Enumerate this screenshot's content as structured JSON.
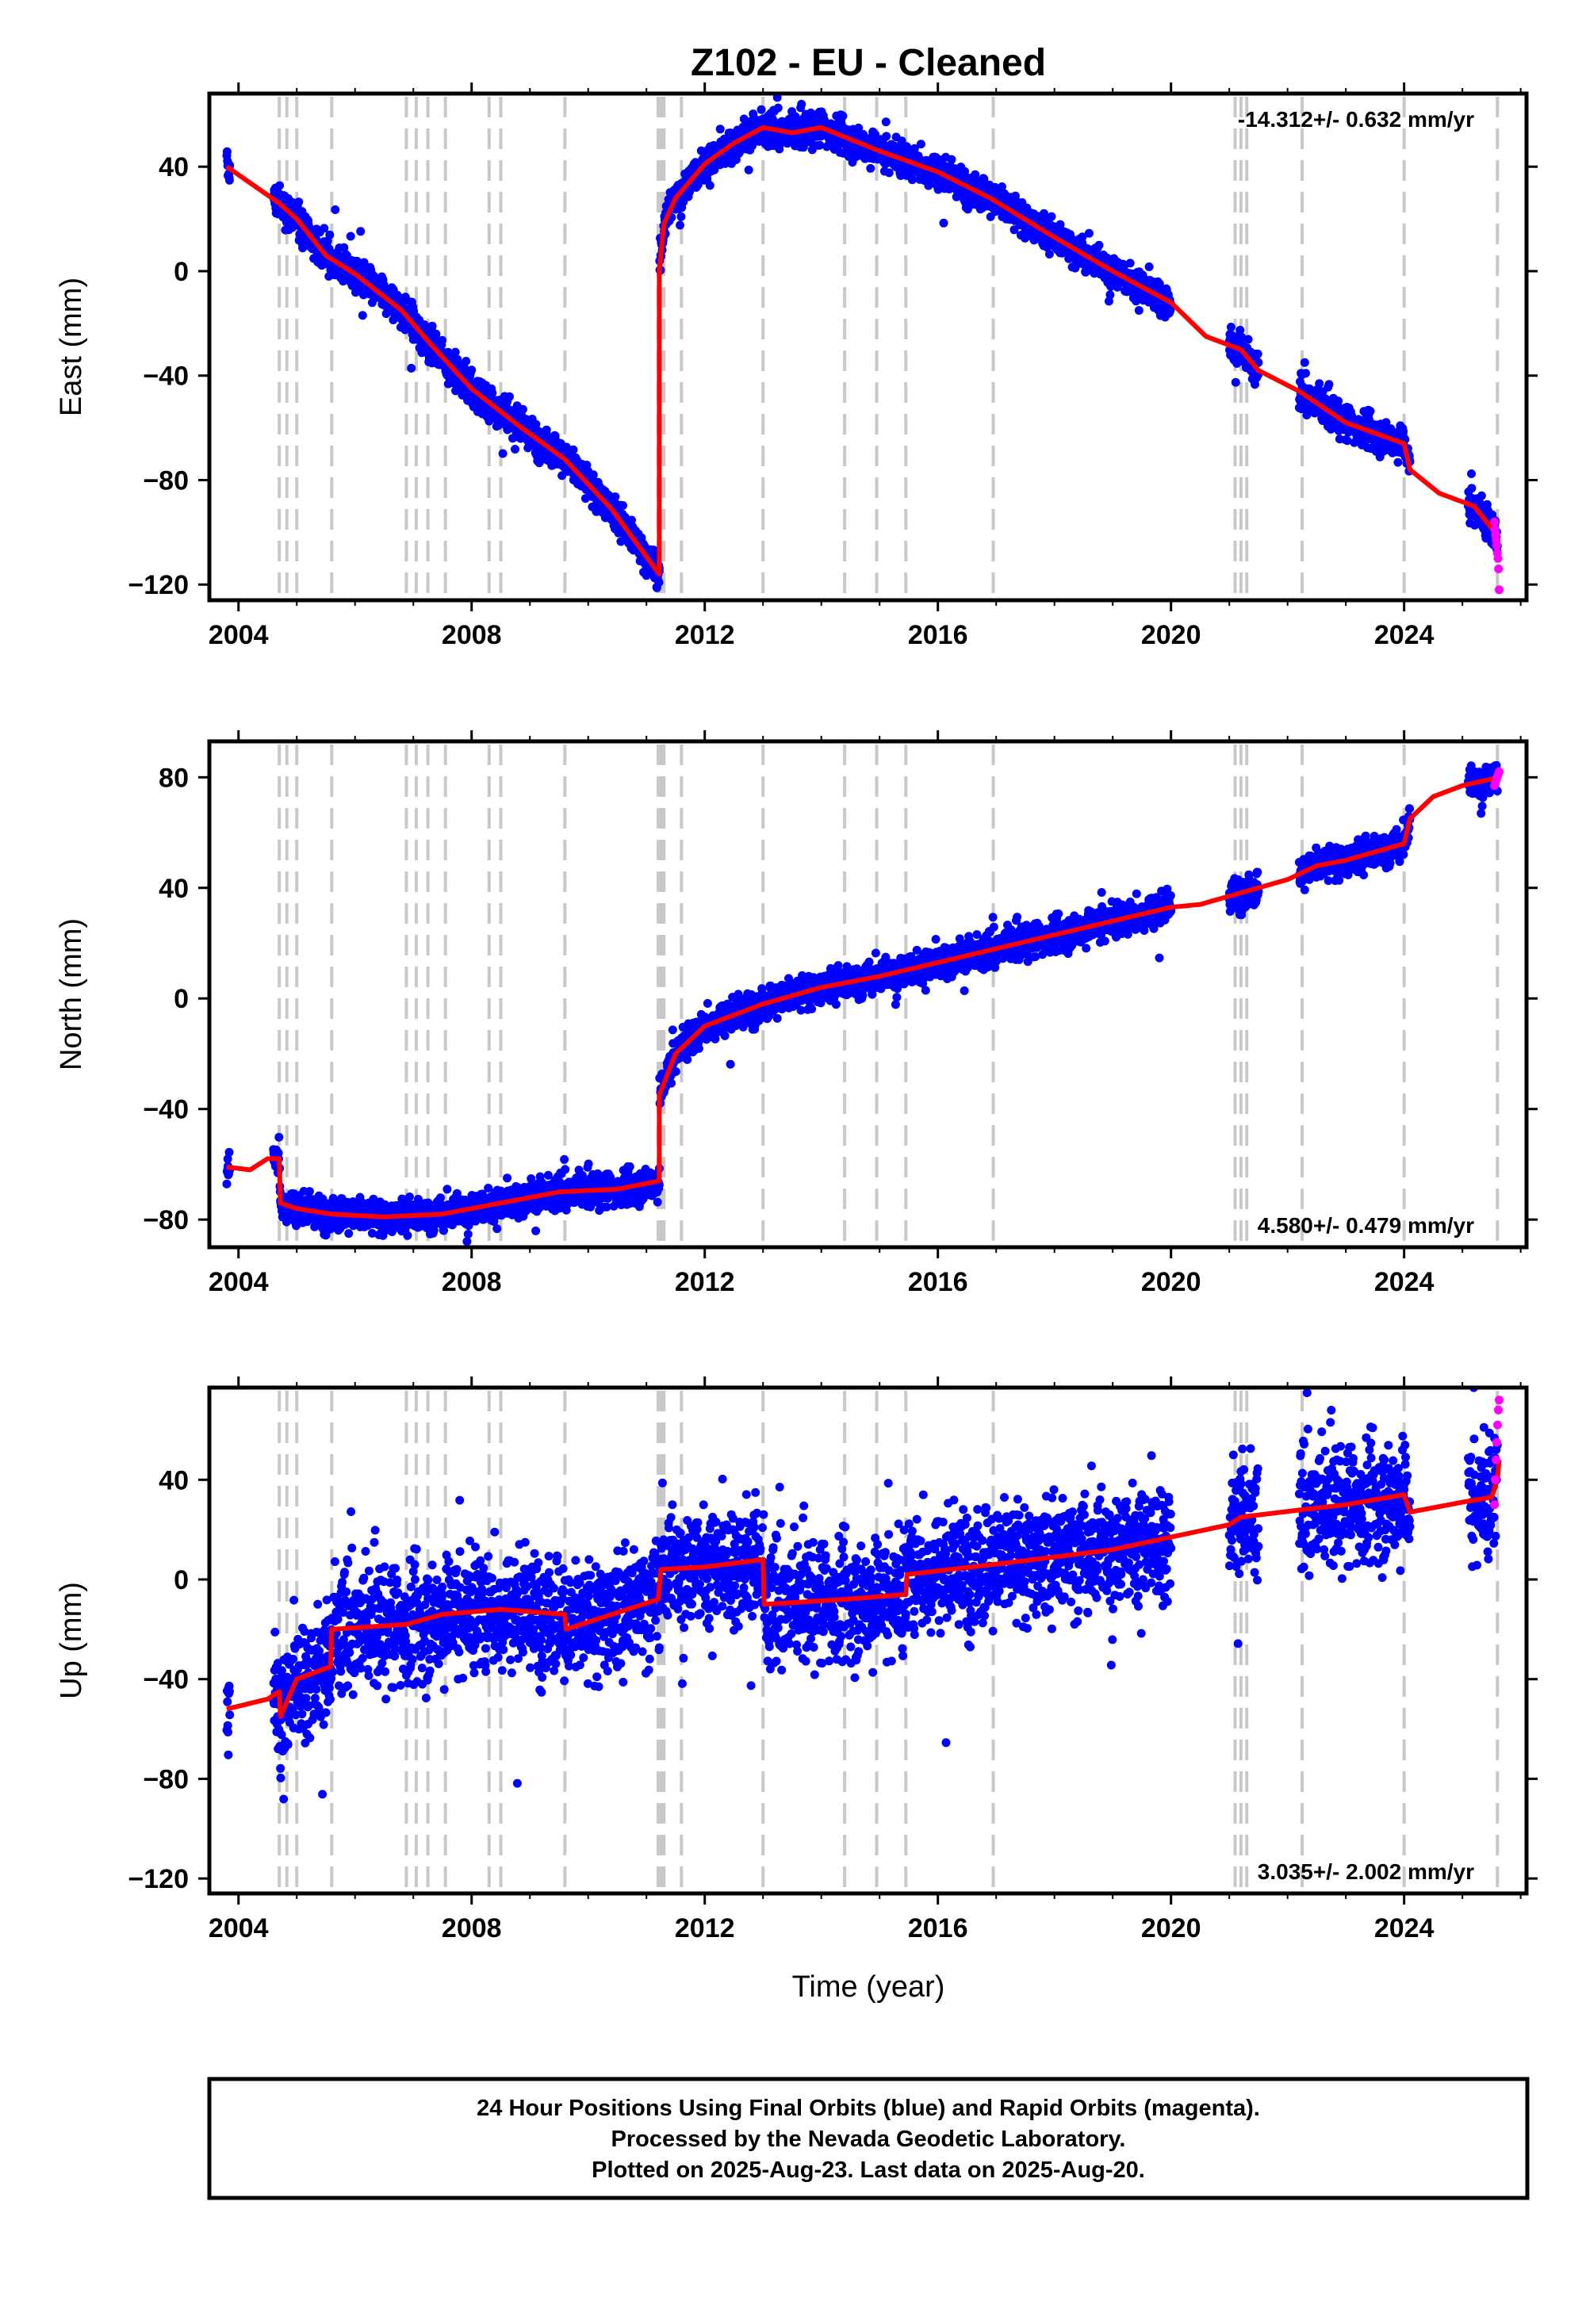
{
  "title": "Z102  - EU - Cleaned",
  "xlabel": "Time (year)",
  "footer": {
    "line1": "24 Hour Positions Using Final Orbits (blue) and Rapid Orbits (magenta).",
    "line2": "Processed by the Nevada Geodetic Laboratory.",
    "line3": "Plotted on 2025-Aug-23. Last data on 2025-Aug-20."
  },
  "colors": {
    "final": "#0000ff",
    "rapid": "#ff00ff",
    "model": "#ff0000",
    "events": "#c8c8c8"
  },
  "chart_data": [
    {
      "type": "scatter",
      "component": "East",
      "ylabel": "East (mm)",
      "rate": "-14.312+/- 0.632 mm/yr",
      "xlim": [
        2003.5,
        2026.1
      ],
      "ylim": [
        -126,
        68
      ],
      "xticks": [
        2004,
        2008,
        2012,
        2016,
        2020,
        2024
      ],
      "yticks": [
        40,
        0,
        -40,
        -80,
        -120
      ],
      "model": {
        "x": [
          2003.8,
          2004.7,
          2005.0,
          2005.5,
          2006.0,
          2006.8,
          2007.3,
          2008.0,
          2008.8,
          2009.6,
          2010.4,
          2011.22,
          2011.22,
          2011.3,
          2011.5,
          2012.0,
          2012.5,
          2013.0,
          2013.5,
          2014.0,
          2015.0,
          2016.0,
          2016.9,
          2018.0,
          2019.0,
          2020.0,
          2020.6,
          2021.2,
          2021.5,
          2022.2,
          2023.0,
          2024.0,
          2024.1,
          2024.6,
          2025.2,
          2025.63
        ],
        "y": [
          40,
          26,
          20,
          6,
          -1,
          -15,
          -28,
          -45,
          -59,
          -72,
          -91,
          -116,
          0,
          18,
          28,
          41,
          49,
          55,
          53,
          55,
          46,
          38,
          28,
          13,
          0,
          -12,
          -25,
          -30,
          -38,
          -46,
          -58,
          -66,
          -76,
          -85,
          -90,
          -102
        ]
      },
      "final_series": {
        "segments": [
          [
            2003.8,
            2003.85
          ],
          [
            2004.6,
            2011.22
          ],
          [
            2011.22,
            2020.0
          ],
          [
            2021.0,
            2021.5
          ],
          [
            2022.2,
            2024.1
          ],
          [
            2025.1,
            2025.6
          ]
        ],
        "noise_mm": 3.2
      },
      "rapid_series": {
        "x_range": [
          2025.55,
          2025.63
        ],
        "y": [
          -96,
          -99,
          -101,
          -103,
          -105,
          -108,
          -110,
          -114,
          -122
        ]
      },
      "events": [
        2004.7,
        2004.83,
        2005.0,
        2005.6,
        2006.88,
        2007.05,
        2007.25,
        2007.55,
        2008.3,
        2008.5,
        2009.6,
        2011.2,
        2011.25,
        2011.3,
        2011.6,
        2013.0,
        2014.4,
        2014.95,
        2015.45,
        2016.95,
        2021.1,
        2021.2,
        2021.3,
        2022.25,
        2024.0,
        2025.6
      ]
    },
    {
      "type": "scatter",
      "component": "North",
      "ylabel": "North (mm)",
      "rate": "4.580+/- 0.479 mm/yr",
      "xlim": [
        2003.5,
        2026.1
      ],
      "ylim": [
        -90,
        93
      ],
      "xticks": [
        2004,
        2008,
        2012,
        2016,
        2020,
        2024
      ],
      "yticks": [
        80,
        40,
        0,
        -40,
        -80
      ],
      "model": {
        "x": [
          2003.8,
          2004.2,
          2004.5,
          2004.7,
          2004.72,
          2005.0,
          2005.6,
          2006.5,
          2007.5,
          2008.5,
          2009.5,
          2010.5,
          2011.22,
          2011.22,
          2011.5,
          2012.0,
          2013.0,
          2014.0,
          2015.0,
          2016.0,
          2017.0,
          2018.0,
          2019.0,
          2020.0,
          2020.5,
          2021.0,
          2021.5,
          2022.0,
          2022.5,
          2023.0,
          2024.0,
          2024.1,
          2024.5,
          2025.0,
          2025.63
        ],
        "y": [
          -61,
          -62,
          -58,
          -58,
          -74,
          -76,
          -78,
          -79,
          -78,
          -74,
          -70,
          -69,
          -66,
          -35,
          -20,
          -10,
          -2,
          4,
          8,
          13,
          18,
          23,
          28,
          33,
          34,
          37,
          40,
          43,
          48,
          50,
          56,
          65,
          73,
          77,
          80
        ]
      },
      "final_series": {
        "segments": [
          [
            2003.8,
            2003.85
          ],
          [
            2004.6,
            2011.22
          ],
          [
            2011.22,
            2020.0
          ],
          [
            2021.0,
            2021.5
          ],
          [
            2022.2,
            2024.1
          ],
          [
            2025.1,
            2025.6
          ]
        ],
        "noise_mm": 3.0
      },
      "rapid_series": {
        "x_range": [
          2025.55,
          2025.63
        ],
        "y": [
          77,
          78,
          79,
          80,
          81,
          82
        ]
      },
      "events": [
        2004.7,
        2004.83,
        2005.0,
        2005.6,
        2006.88,
        2007.05,
        2007.25,
        2007.55,
        2008.3,
        2008.5,
        2009.6,
        2011.2,
        2011.25,
        2011.3,
        2011.6,
        2013.0,
        2014.4,
        2014.95,
        2015.45,
        2016.95,
        2021.1,
        2021.2,
        2021.3,
        2022.25,
        2024.0,
        2025.6
      ]
    },
    {
      "type": "scatter",
      "component": "Up",
      "ylabel": "Up (mm)",
      "rate": "3.035+/- 2.002 mm/yr",
      "xlim": [
        2003.5,
        2026.1
      ],
      "ylim": [
        -126,
        77
      ],
      "xticks": [
        2004,
        2008,
        2012,
        2016,
        2020,
        2024
      ],
      "yticks": [
        40,
        0,
        -40,
        -80,
        -120
      ],
      "model": {
        "x": [
          2003.8,
          2004.5,
          2004.7,
          2004.72,
          2005.0,
          2005.58,
          2005.6,
          2006.88,
          2007.5,
          2008.5,
          2009.6,
          2009.62,
          2011.2,
          2011.25,
          2012.0,
          2013.0,
          2013.02,
          2014.4,
          2015.45,
          2015.47,
          2016.95,
          2018.0,
          2019.0,
          2020.0,
          2021.0,
          2021.2,
          2022.25,
          2023.0,
          2024.0,
          2024.1,
          2025.0,
          2025.5,
          2025.6,
          2025.63
        ],
        "y": [
          -52,
          -48,
          -45,
          -55,
          -40,
          -35,
          -20,
          -18,
          -14,
          -12,
          -14,
          -20,
          -8,
          4,
          5,
          8,
          -10,
          -8,
          -6,
          2,
          6,
          9,
          12,
          17,
          22,
          25,
          28,
          30,
          34,
          27,
          31,
          33,
          40,
          48
        ]
      },
      "final_series": {
        "segments": [
          [
            2003.8,
            2003.85
          ],
          [
            2004.6,
            2011.22
          ],
          [
            2011.22,
            2020.0
          ],
          [
            2021.0,
            2021.5
          ],
          [
            2022.2,
            2024.1
          ],
          [
            2025.1,
            2025.6
          ]
        ],
        "noise_mm": 12
      },
      "rapid_series": {
        "x_range": [
          2025.55,
          2025.63
        ],
        "y": [
          30,
          40,
          48,
          55,
          62,
          68,
          72
        ]
      },
      "events": [
        2004.7,
        2004.83,
        2005.0,
        2005.6,
        2006.88,
        2007.05,
        2007.25,
        2007.55,
        2008.3,
        2008.5,
        2009.6,
        2011.2,
        2011.25,
        2011.3,
        2011.6,
        2013.0,
        2014.4,
        2014.95,
        2015.45,
        2016.95,
        2021.1,
        2021.2,
        2021.3,
        2022.25,
        2024.0,
        2025.6
      ]
    }
  ]
}
